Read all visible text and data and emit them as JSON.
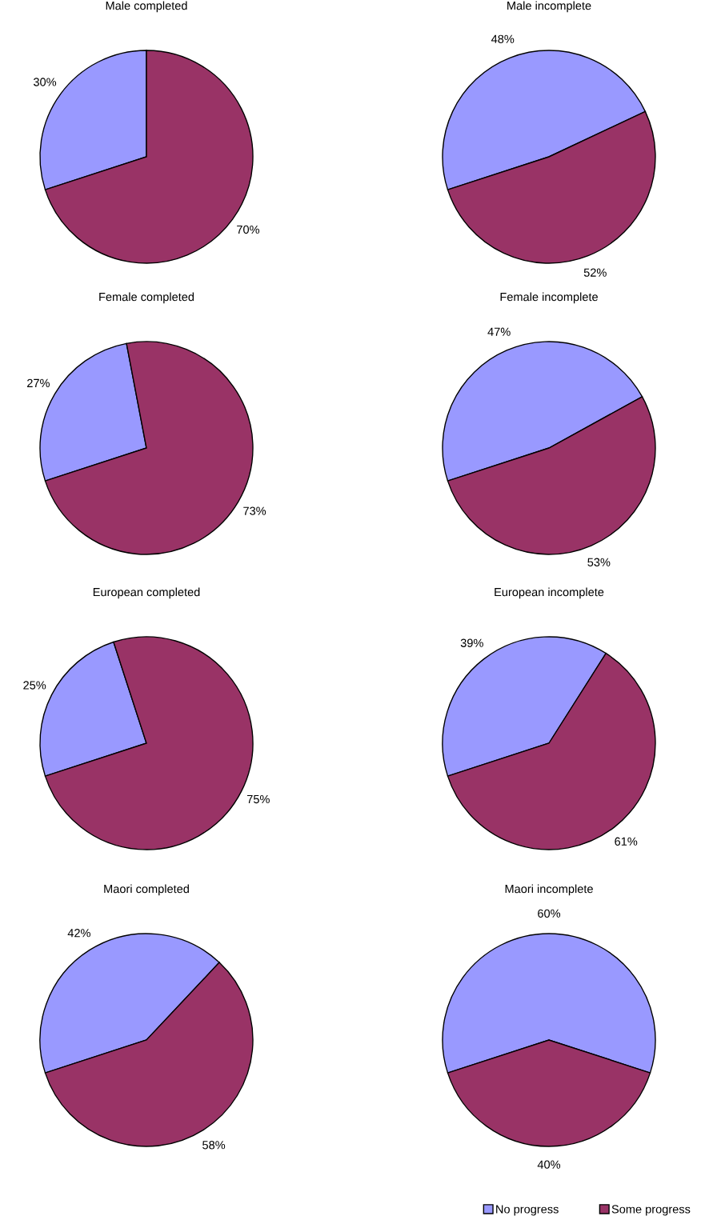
{
  "chart_data": [
    {
      "type": "pie",
      "title": "Male completed",
      "categories": [
        "No progress",
        "Some progress"
      ],
      "values": [
        30,
        70
      ],
      "colors": [
        "#9999ff",
        "#993366"
      ],
      "value_labels": [
        "30%",
        "70%"
      ],
      "legend": "bottom right"
    },
    {
      "type": "pie",
      "title": "Male incomplete",
      "categories": [
        null,
        null
      ],
      "values": [
        48,
        52
      ],
      "colors": [
        "#9999ff",
        "#993366"
      ],
      "value_labels": [
        "48%",
        "52%"
      ]
    },
    {
      "type": "pie",
      "title": "Female completed",
      "categories": [
        null,
        null
      ],
      "values": [
        27,
        73
      ],
      "colors": [
        "#9999ff",
        "#993366"
      ],
      "value_labels": [
        "27%",
        "73%"
      ]
    },
    {
      "type": "pie",
      "title": "Female incomplete",
      "categories": [
        null,
        null
      ],
      "values": [
        47,
        53
      ],
      "colors": [
        "#9999ff",
        "#993366"
      ],
      "value_labels": [
        "47%",
        "53%"
      ]
    },
    {
      "type": "pie",
      "title": "European completed",
      "categories": [
        null,
        null
      ],
      "values": [
        25,
        75
      ],
      "colors": [
        "#9999ff",
        "#993366"
      ],
      "value_labels": [
        "25%",
        "75%"
      ]
    },
    {
      "type": "pie",
      "title": "European incomplete",
      "categories": [
        null,
        null
      ],
      "values": [
        39,
        61
      ],
      "colors": [
        "#9999ff",
        "#993366"
      ],
      "value_labels": [
        "39%",
        "61%"
      ]
    },
    {
      "type": "pie",
      "title": "Maori completed",
      "categories": [
        null,
        null
      ],
      "values": [
        42,
        58
      ],
      "colors": [
        "#9999ff",
        "#993366"
      ],
      "value_labels": [
        "42%",
        "58%"
      ]
    },
    {
      "type": "pie",
      "title": "Maori incomplete",
      "categories": [
        null,
        null
      ],
      "values": [
        60,
        40
      ],
      "colors": [
        "#9999ff",
        "#993366"
      ],
      "value_labels": [
        "60%",
        "40%"
      ]
    }
  ]
}
